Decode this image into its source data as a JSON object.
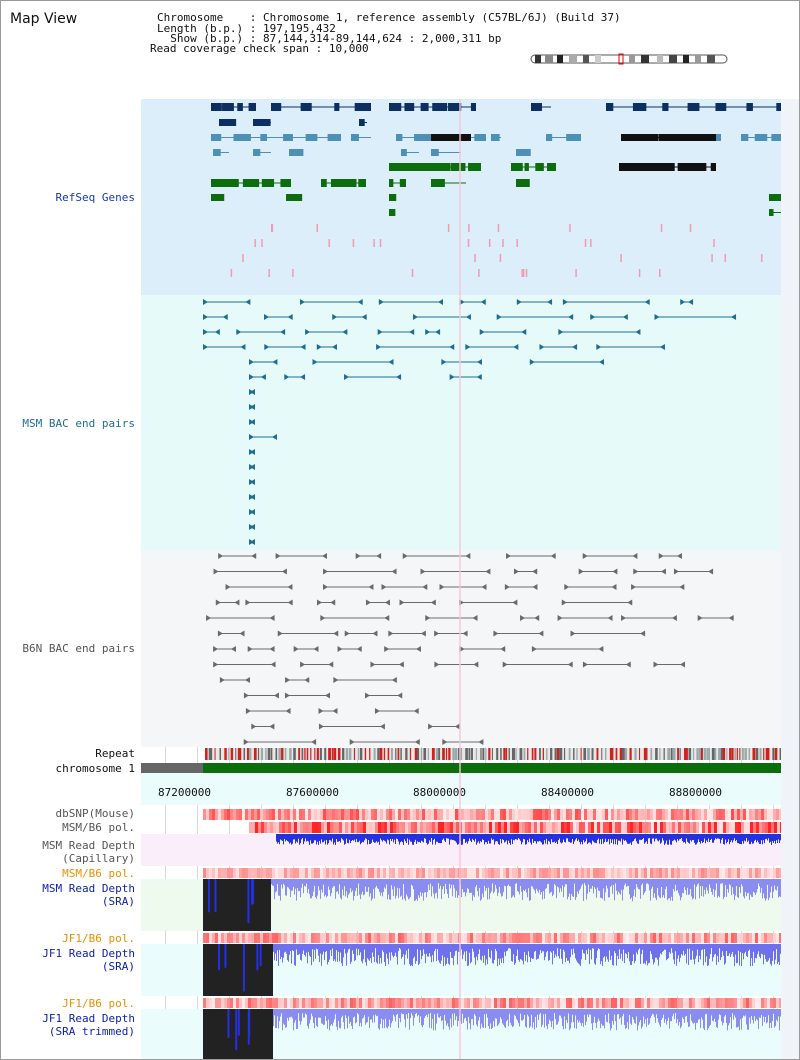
{
  "title": "Map View",
  "info": {
    "chromosome_key": "Chromosome",
    "chromosome_value": "Chromosome 1, reference assembly (C57BL/6J) (Build 37)",
    "length_key": "Length (b.p.)",
    "length_value": "197,195,432",
    "show_key": "Show (b.p.)",
    "show_value": "87,144,314-89,144,624 : 2,000,311 bp",
    "coverage_key": "Read coverage check span",
    "coverage_value": "10,000"
  },
  "tracks": {
    "refseq": "RefSeq Genes",
    "msm_bac": "MSM BAC end pairs",
    "b6n_bac": "B6N BAC end pairs",
    "repeat": "Repeat",
    "chromosome": "chromosome 1",
    "dbsnp": "dbSNP(Mouse)",
    "msm_b6_pol_1": "MSM/B6 pol.",
    "msm_depth_cap_1": "MSM Read Depth",
    "msm_depth_cap_2": "(Capillary)",
    "msm_b6_pol_2": "MSM/B6 pol.",
    "msm_depth_sra_1": "MSM Read Depth",
    "msm_depth_sra_2": "(SRA)",
    "jf1_b6_pol_1": "JF1/B6 pol.",
    "jf1_depth_sra_1": "JF1 Read Depth",
    "jf1_depth_sra_2": "(SRA)",
    "jf1_b6_pol_2": "JF1/B6 pol.",
    "jf1_depth_trim_1": "JF1 Read Depth",
    "jf1_depth_trim_2": "(SRA trimmed)"
  },
  "axis_ticks": [
    "87200000",
    "87600000",
    "88000000",
    "88400000",
    "88800000"
  ],
  "colors": {
    "refseq_bg": "#dceefa",
    "msm_bg": "#e6fafa",
    "b6n_bg": "#f4f6f8",
    "navy": "#0b2f62",
    "teal": "#4d8fb5",
    "green": "#0b6d0b",
    "msm_track": "#1f6e91",
    "b6n_track": "#6a6a6a",
    "label_blue": "#1a3aa8",
    "label_teal": "#1f6e91",
    "label_gray": "#555555",
    "label_orange": "#e89000",
    "label_navy": "#1020b0"
  }
}
